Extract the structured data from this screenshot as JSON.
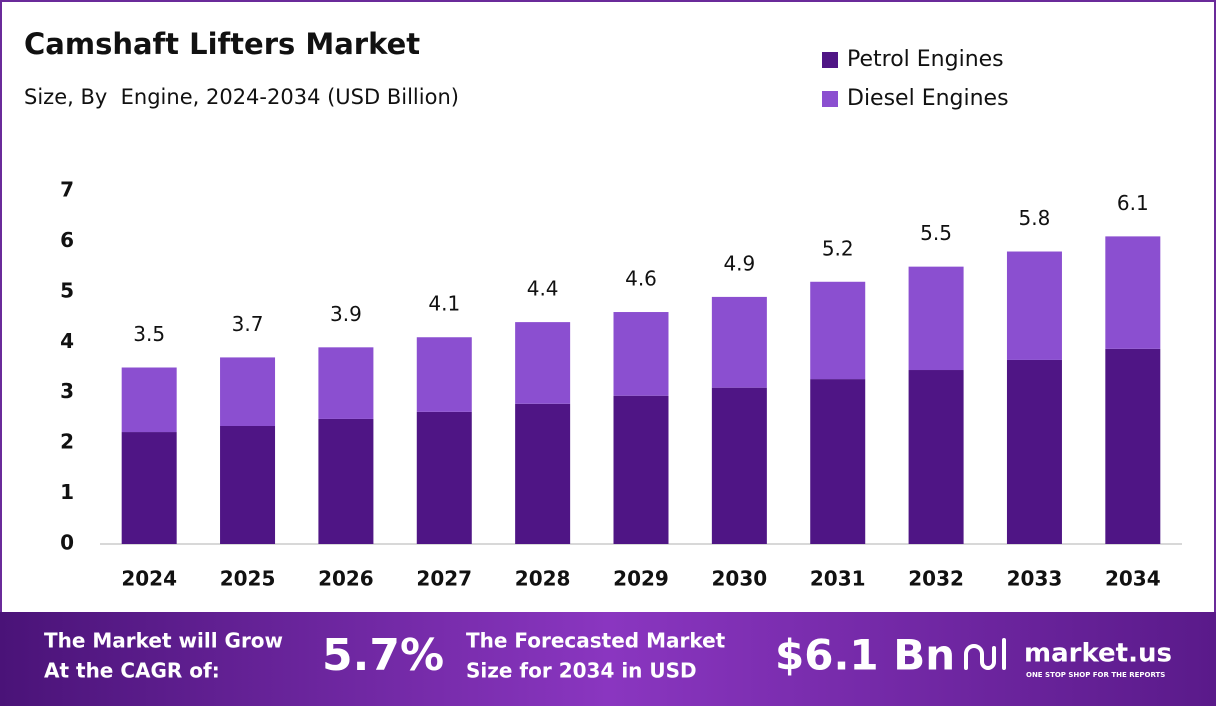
{
  "chart_data": {
    "type": "stacked_bar",
    "title": "Camshaft Lifters Market",
    "subtitle": "Size, By  Engine, 2024-2034 (USD Billion)",
    "categories": [
      "2024",
      "2025",
      "2026",
      "2027",
      "2028",
      "2029",
      "2030",
      "2031",
      "2032",
      "2033",
      "2034"
    ],
    "series": [
      {
        "name": "Petrol Engines",
        "color": "#4f1585",
        "values": [
          2.22,
          2.34,
          2.48,
          2.62,
          2.78,
          2.94,
          3.1,
          3.27,
          3.45,
          3.65,
          3.87
        ]
      },
      {
        "name": "Diesel Engines",
        "color": "#8b4fd0",
        "values": [
          1.28,
          1.36,
          1.42,
          1.48,
          1.62,
          1.66,
          1.8,
          1.93,
          2.05,
          2.15,
          2.23
        ]
      }
    ],
    "totals": [
      3.5,
      3.7,
      3.9,
      4.1,
      4.4,
      4.6,
      4.9,
      5.2,
      5.5,
      5.8,
      6.1
    ],
    "ylim": [
      0,
      7
    ],
    "yticks": [
      0,
      1,
      2,
      3,
      4,
      5,
      6,
      7
    ],
    "grid": false,
    "legend": "top-right"
  },
  "footer": {
    "cagr_text": [
      "The Market will Grow",
      "At the CAGR of:"
    ],
    "cagr": "5.7%",
    "forecast_text": [
      "The Forecasted Market",
      "Size for 2034 in USD"
    ],
    "forecast": "$6.1 Bn",
    "brand": "market.us",
    "tagline": "ONE STOP SHOP FOR THE REPORTS"
  }
}
